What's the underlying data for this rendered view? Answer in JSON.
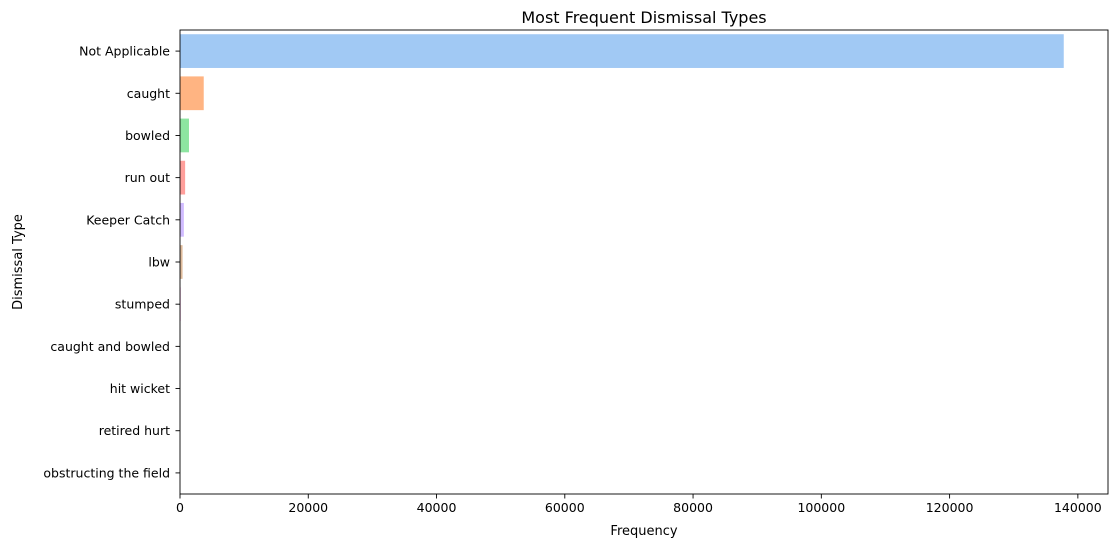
{
  "chart_data": {
    "type": "bar",
    "orientation": "horizontal",
    "title": "Most Frequent Dismissal Types",
    "xlabel": "Frequency",
    "ylabel": "Dismissal Type",
    "categories": [
      "Not Applicable",
      "caught",
      "bowled",
      "run out",
      "Keeper Catch",
      "lbw",
      "stumped",
      "caught and bowled",
      "hit wicket",
      "retired hurt",
      "obstructing the field"
    ],
    "values": [
      137800,
      3700,
      1400,
      800,
      600,
      400,
      110,
      60,
      15,
      8,
      1
    ],
    "colors": [
      "#a1c9f4",
      "#ffb482",
      "#8de5a1",
      "#ff9f9b",
      "#d0bbff",
      "#debb9b",
      "#fab0e4",
      "#cfcfcf",
      "#fffea3",
      "#b9f2f0",
      "#a1c9f4"
    ],
    "xlim": [
      0,
      144700
    ],
    "xticks": [
      0,
      20000,
      40000,
      60000,
      80000,
      100000,
      120000,
      140000
    ],
    "xtick_labels": [
      "0",
      "20000",
      "40000",
      "60000",
      "80000",
      "100000",
      "120000",
      "140000"
    ],
    "grid": false,
    "legend": "none"
  }
}
